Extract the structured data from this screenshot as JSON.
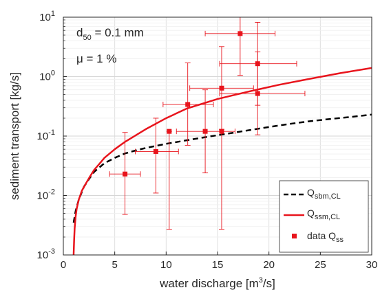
{
  "chart_data": {
    "type": "scatter",
    "xlabel": {
      "text": "water discharge [m",
      "sup": "3",
      "tail": "/s]"
    },
    "ylabel": "sediment transport [kg/s]",
    "xlim": [
      0,
      30
    ],
    "ylim": [
      0.001,
      10
    ],
    "yscale": "log",
    "grid": true,
    "x_ticks": [
      0,
      5,
      10,
      15,
      20,
      25,
      30
    ],
    "y_ticks": [
      {
        "value": 0.001,
        "base": "10",
        "exp": "-3"
      },
      {
        "value": 0.01,
        "base": "10",
        "exp": "-2"
      },
      {
        "value": 0.1,
        "base": "10",
        "exp": "-1"
      },
      {
        "value": 1,
        "base": "10",
        "exp": "0"
      },
      {
        "value": 10,
        "base": "10",
        "exp": "1"
      }
    ],
    "annotations": [
      {
        "id": "d50",
        "base": "d",
        "sub": "50",
        "tail": " = 0.1 mm"
      },
      {
        "id": "mu",
        "text": "μ = 1 %"
      }
    ],
    "legend_position": "bottom-right",
    "series": [
      {
        "id": "qsbm",
        "legend": {
          "base": "Q",
          "sub": "sbm,CL"
        },
        "style": "dashed",
        "color": "#000000",
        "x": [
          1.0,
          1.2,
          1.5,
          2.0,
          2.5,
          3.0,
          4.0,
          5.0,
          6.0,
          7.0,
          8.0,
          10.0,
          12.0,
          14.0,
          16.0,
          18.0,
          20.0,
          22.0,
          24.0,
          26.0,
          28.0,
          30.0
        ],
        "y": [
          0.0035,
          0.0055,
          0.0085,
          0.014,
          0.019,
          0.025,
          0.035,
          0.043,
          0.051,
          0.057,
          0.063,
          0.074,
          0.085,
          0.097,
          0.11,
          0.125,
          0.142,
          0.16,
          0.178,
          0.194,
          0.21,
          0.23
        ]
      },
      {
        "id": "qssm",
        "legend": {
          "base": "Q",
          "sub": "ssm,CL"
        },
        "style": "solid",
        "color": "#e8141c",
        "x": [
          1.0,
          1.05,
          1.1,
          1.2,
          1.3,
          1.5,
          1.8,
          2.2,
          2.6,
          3.0,
          3.5,
          4.0,
          5.0,
          6.0,
          8.0,
          10.0,
          12.0,
          15.0,
          18.0,
          21.0,
          24.0,
          27.0,
          30.0
        ],
        "y": [
          0.001,
          0.0018,
          0.0028,
          0.0045,
          0.006,
          0.0085,
          0.012,
          0.016,
          0.021,
          0.027,
          0.034,
          0.043,
          0.06,
          0.08,
          0.13,
          0.2,
          0.29,
          0.42,
          0.56,
          0.73,
          0.92,
          1.15,
          1.4
        ]
      },
      {
        "id": "data",
        "legend": {
          "base": "data Q",
          "sub": "ss"
        },
        "style": "markers",
        "color": "#e8141c",
        "points": [
          {
            "x": 6.0,
            "y": 0.023,
            "xerr": [
              4.5,
              7.5
            ],
            "yerr": [
              0.0048,
              0.115
            ]
          },
          {
            "x": 9.0,
            "y": 0.055,
            "xerr": [
              7.0,
              11.2
            ],
            "yerr": [
              0.011,
              0.2
            ]
          },
          {
            "x": 12.1,
            "y": 0.34,
            "xerr": [
              9.7,
              14.6
            ],
            "yerr": [
              0.07,
              1.7
            ]
          },
          {
            "x": 13.8,
            "y": 0.12,
            "xerr": [
              11.0,
              16.7
            ],
            "yerr": [
              0.024,
              0.6
            ]
          },
          {
            "x": 10.3,
            "y": 0.12,
            "xerr": [
              10.3,
              10.3
            ],
            "yerr": [
              0.0027,
              0.12
            ]
          },
          {
            "x": 15.4,
            "y": 0.64,
            "xerr": [
              12.3,
              18.5
            ],
            "yerr": [
              0.13,
              3.2
            ]
          },
          {
            "x": 15.4,
            "y": 0.12,
            "xerr": [
              15.4,
              15.4
            ],
            "yerr": [
              0.0027,
              0.12
            ]
          },
          {
            "x": 17.2,
            "y": 5.3,
            "xerr": [
              13.8,
              20.6
            ],
            "yerr": [
              1.05,
              10
            ]
          },
          {
            "x": 18.9,
            "y": 1.65,
            "xerr": [
              15.2,
              22.7
            ],
            "yerr": [
              0.33,
              8.2
            ]
          },
          {
            "x": 18.9,
            "y": 0.52,
            "xerr": [
              15.2,
              23.5
            ],
            "yerr": [
              0.105,
              2.6
            ]
          }
        ]
      }
    ]
  }
}
